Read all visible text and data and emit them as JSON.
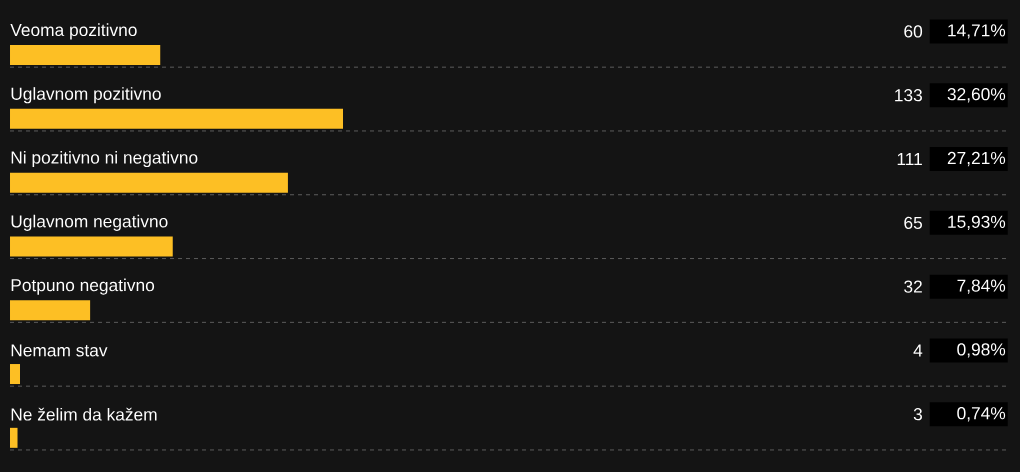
{
  "chart_data": {
    "type": "bar",
    "orientation": "horizontal",
    "categories": [
      "Veoma pozitivno",
      "Uglavnom pozitivno",
      "Ni pozitivno ni negativno",
      "Uglavnom negativno",
      "Potpuno negativno",
      "Nemam stav",
      "Ne želim da kažem"
    ],
    "values": [
      60,
      133,
      111,
      65,
      32,
      4,
      3
    ],
    "color": "#fdbf24",
    "data_labels": true,
    "annotations": [
      "14,71%",
      "32,60%",
      "27,21%",
      "15,93%",
      "7,84%",
      "0,98%",
      "0,74%"
    ],
    "grid": "y"
  }
}
